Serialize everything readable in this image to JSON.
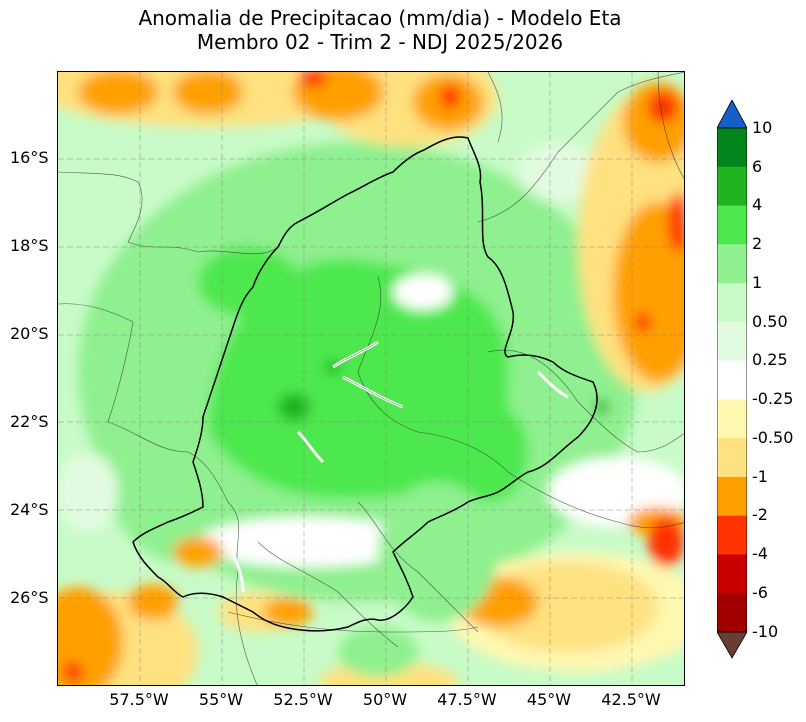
{
  "title": {
    "line1": "Anomalia de Precipitacao (mm/dia) - Modelo Eta",
    "line2": "Membro 02 - Trim 2 - NDJ 2025/2026"
  },
  "lat_labels": [
    "16°S",
    "18°S",
    "20°S",
    "22°S",
    "24°S",
    "26°S"
  ],
  "lon_labels": [
    "57.5°W",
    "55°W",
    "52.5°W",
    "50°W",
    "47.5°W",
    "45°W",
    "42.5°W"
  ],
  "colorbar": {
    "ticks": [
      "10",
      "6",
      "4",
      "2",
      "1",
      "0.50",
      "0.25",
      "-0.25",
      "-0.50",
      "-1",
      "-2",
      "-4",
      "-6",
      "-10"
    ],
    "colors": [
      "#00861c",
      "#1fb41f",
      "#4ee84e",
      "#8ff08f",
      "#c8fbc8",
      "#e2fbe0",
      "#ffffff",
      "#fff8b0",
      "#ffe180",
      "#ffa000",
      "#ff3300",
      "#c80000",
      "#a00000"
    ],
    "over_color": "#1560c8",
    "under_color": "#6a3d33"
  },
  "palette": {
    "green_strong": "#00861c",
    "green_dark": "#1fb41f",
    "green_mid": "#4ee84e",
    "green_light": "#8ff08f",
    "green_pale": "#c8fbc8",
    "yellow_pale": "#fff8b0",
    "yellow": "#ffe180",
    "orange": "#ffa000",
    "red": "#ff3300",
    "darkred": "#c80000"
  }
}
